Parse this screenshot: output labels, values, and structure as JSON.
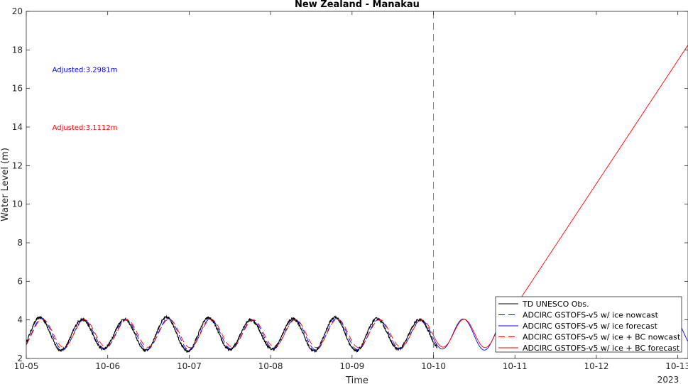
{
  "chart_data": {
    "type": "line",
    "title": "New Zealand - Manakau",
    "xlabel": "Time",
    "ylabel": "Water Level (m)",
    "x_unit": "days",
    "xlim": [
      "2023-10-05T00:00",
      "2023-10-13T03:00"
    ],
    "ylim": [
      2,
      20
    ],
    "x_ticks": [
      "10-05",
      "10-06",
      "10-07",
      "10-08",
      "10-09",
      "10-10",
      "10-11",
      "10-12",
      "10-13"
    ],
    "x_year_label": "2023",
    "y_ticks": [
      2,
      4,
      6,
      8,
      10,
      12,
      14,
      16,
      18,
      20
    ],
    "grid": false,
    "nowcast_forecast_divider": "2023-10-10T00:00",
    "annotations": [
      {
        "text": "Adjusted:3.2981m",
        "color": "#0000ff",
        "x": "2023-10-05T07:40",
        "y": 17.0
      },
      {
        "text": "Adjusted:3.1112m",
        "color": "#ff0000",
        "x": "2023-10-05T07:40",
        "y": 14.0
      }
    ],
    "legend": {
      "placement": "bottom-right"
    },
    "series": [
      {
        "name": "TD UNESCO Obs.",
        "color": "#000000",
        "style": "solid",
        "kind": "tide",
        "t_start": 0.0,
        "t_end": 5.05,
        "mean": 3.25,
        "amp": 0.82,
        "amp_mod": 0.08,
        "phase_hw_day": 0.17,
        "period_days": 0.5175,
        "noise": 0.07
      },
      {
        "name": "ADCIRC GSTOFS-v5 w/ ice nowcast",
        "color": "#0000ff",
        "style": "dashed",
        "kind": "tide",
        "t_start": 0.0,
        "t_end": 5.0,
        "mean": 3.25,
        "amp": 0.78,
        "amp_mod": 0.05,
        "phase_hw_day": 0.19,
        "period_days": 0.5175,
        "noise": 0
      },
      {
        "name": "ADCIRC GSTOFS-v5 w/ ice forecast",
        "color": "#0000ff",
        "style": "solid",
        "kind": "tide",
        "t_start": 5.0,
        "t_end": 8.125,
        "mean": 3.25,
        "amp": 0.78,
        "amp_mod": 0.05,
        "phase_hw_day": 0.19,
        "period_days": 0.5175,
        "noise": 0
      },
      {
        "name": "ADCIRC GSTOFS-v5 w/ ice + BC nowcast",
        "color": "#ff0000",
        "style": "dashed",
        "kind": "tide",
        "t_start": 0.0,
        "t_end": 5.0,
        "mean": 3.3,
        "amp": 0.72,
        "amp_mod": 0.03,
        "phase_hw_day": 0.2,
        "period_days": 0.5175,
        "noise": 0
      },
      {
        "name": "ADCIRC GSTOFS-v5 w/ ice + BC forecast",
        "color": "#ff0000",
        "style": "solid",
        "kind": "tide_then_ramp",
        "t_start": 5.0,
        "t_end": 8.125,
        "mean": 3.3,
        "amp": 0.72,
        "amp_mod": 0.03,
        "phase_hw_day": 0.2,
        "period_days": 0.5175,
        "noise": 0,
        "ramp": [
          [
            5.9,
            4.05
          ],
          [
            8.125,
            18.25
          ]
        ]
      }
    ]
  }
}
